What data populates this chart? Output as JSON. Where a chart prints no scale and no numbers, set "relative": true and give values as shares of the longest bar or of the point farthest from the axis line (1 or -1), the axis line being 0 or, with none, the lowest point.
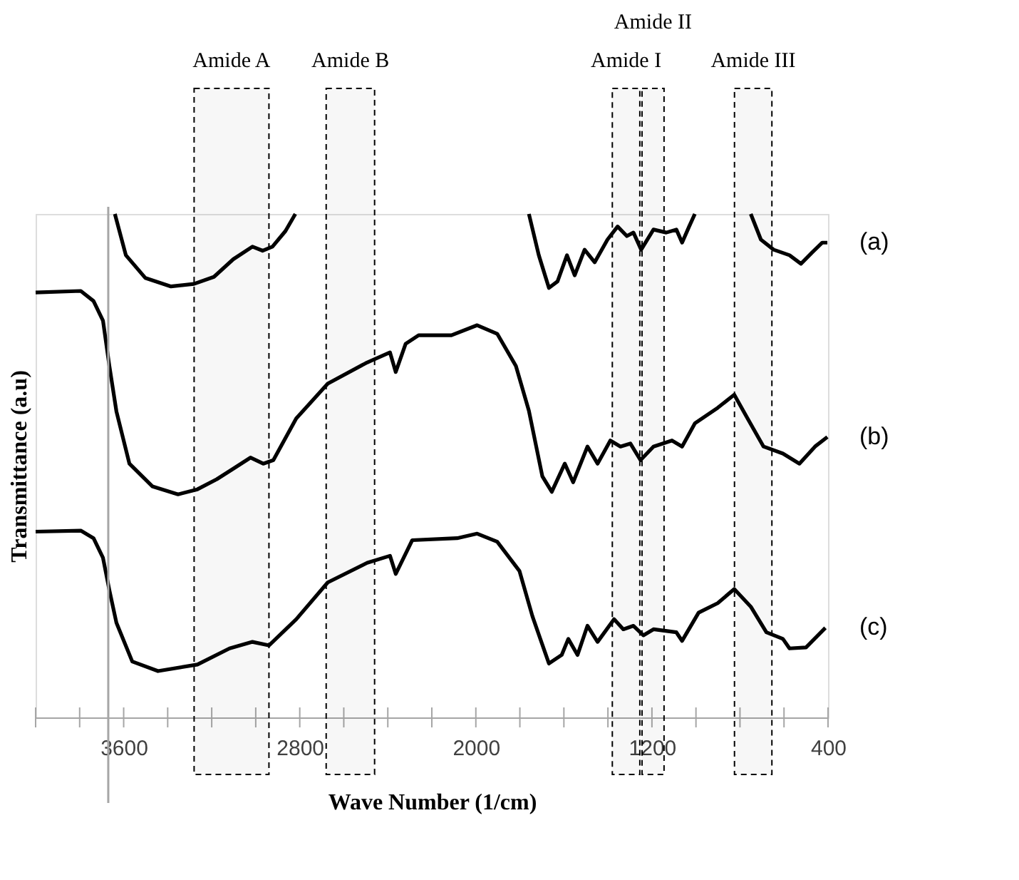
{
  "chart_data": {
    "type": "line",
    "relative": true,
    "xlabel": "Wave Number (1/cm)",
    "ylabel": "Transmittance (a.u)",
    "xlim": [
      4000,
      400
    ],
    "xticks": [
      {
        "value": 4000,
        "label": null
      },
      {
        "value": 3800,
        "label": null
      },
      3600,
      {
        "value": 3400,
        "label": null
      },
      {
        "value": 3200,
        "label": null
      },
      {
        "value": 3000,
        "label": null
      },
      2800,
      {
        "value": 2600,
        "label": null
      },
      {
        "value": 2400,
        "label": null
      },
      {
        "value": 2200,
        "label": null
      },
      2000,
      {
        "value": 1800,
        "label": null
      },
      {
        "value": 1600,
        "label": null
      },
      {
        "value": 1400,
        "label": null
      },
      1200,
      {
        "value": 1000,
        "label": null
      },
      {
        "value": 800,
        "label": null
      },
      {
        "value": 600,
        "label": null
      },
      400
    ],
    "grid": false,
    "line_style": "solid",
    "marker": "none",
    "series": [
      {
        "name": "(a)",
        "color": "#000000",
        "x": [
          3640,
          3590,
          3502,
          3385,
          3281,
          3190,
          3102,
          3015,
          2969,
          2924,
          2865,
          2820,
          2300,
          1759,
          1714,
          1668,
          1629,
          1586,
          1551,
          1506,
          1460,
          1402,
          1356,
          1314,
          1284,
          1249,
          1193,
          1135,
          1089,
          1063,
          1031,
          1005,
          900,
          751,
          705,
          647,
          575,
          523,
          471,
          426,
          403
        ],
        "values": [
          1.0,
          0.918,
          0.873,
          0.856,
          0.861,
          0.875,
          0.91,
          0.935,
          0.927,
          0.935,
          0.966,
          1.0,
          null,
          1.0,
          0.918,
          0.853,
          0.866,
          0.918,
          0.878,
          0.929,
          0.904,
          0.949,
          0.975,
          0.956,
          0.963,
          0.929,
          0.969,
          0.963,
          0.969,
          0.943,
          0.975,
          1.0,
          null,
          1.0,
          0.949,
          0.929,
          0.918,
          0.901,
          0.924,
          0.943,
          0.943
        ]
      },
      {
        "name": "(b)",
        "color": "#000000",
        "x": [
          4000,
          3795,
          3737,
          3694,
          3665,
          3633,
          3574,
          3470,
          3353,
          3265,
          3177,
          3102,
          3024,
          2966,
          2920,
          2816,
          2673,
          2494,
          2390,
          2364,
          2319,
          2260,
          2111,
          1994,
          1903,
          1818,
          1759,
          1698,
          1655,
          1596,
          1558,
          1493,
          1447,
          1389,
          1343,
          1298,
          1252,
          1193,
          1109,
          1063,
          1005,
          901,
          826,
          767,
          693,
          605,
          530,
          459,
          403
        ],
        "values": [
          0.844,
          0.847,
          0.827,
          0.788,
          0.698,
          0.608,
          0.504,
          0.459,
          0.443,
          0.453,
          0.473,
          0.494,
          0.516,
          0.504,
          0.511,
          0.594,
          0.663,
          0.705,
          0.725,
          0.686,
          0.742,
          0.759,
          0.759,
          0.779,
          0.762,
          0.698,
          0.609,
          0.479,
          0.448,
          0.504,
          0.467,
          0.538,
          0.504,
          0.55,
          0.538,
          0.544,
          0.511,
          0.538,
          0.55,
          0.538,
          0.584,
          0.615,
          0.641,
          0.595,
          0.538,
          0.524,
          0.504,
          0.538,
          0.557
        ]
      },
      {
        "name": "(c)",
        "color": "#000000",
        "x": [
          4000,
          3795,
          3737,
          3694,
          3665,
          3633,
          3561,
          3444,
          3265,
          3119,
          3015,
          2940,
          2816,
          2673,
          2494,
          2390,
          2364,
          2289,
          2085,
          1994,
          1903,
          1802,
          1743,
          1668,
          1610,
          1580,
          1538,
          1493,
          1447,
          1372,
          1330,
          1284,
          1239,
          1193,
          1089,
          1063,
          988,
          901,
          826,
          751,
          680,
          605,
          575,
          500,
          412
        ],
        "values": [
          0.369,
          0.371,
          0.356,
          0.317,
          0.253,
          0.188,
          0.111,
          0.092,
          0.105,
          0.137,
          0.15,
          0.143,
          0.195,
          0.268,
          0.307,
          0.321,
          0.285,
          0.352,
          0.356,
          0.365,
          0.349,
          0.291,
          0.201,
          0.107,
          0.124,
          0.156,
          0.124,
          0.182,
          0.15,
          0.195,
          0.175,
          0.182,
          0.163,
          0.175,
          0.169,
          0.152,
          0.208,
          0.227,
          0.255,
          0.22,
          0.169,
          0.156,
          0.137,
          0.139,
          0.178
        ]
      }
    ],
    "ref_lines": [
      {
        "axis": "x",
        "value": 3670,
        "label": null,
        "color": "#a6a6a6",
        "line_style": "solid"
      }
    ],
    "bands": [
      {
        "axis": "x",
        "from": 3280,
        "to": 2940,
        "label": "Amide A",
        "color": "#000000"
      },
      {
        "axis": "x",
        "from": 2680,
        "to": 2460,
        "label": "Amide B",
        "color": "#000000"
      },
      {
        "axis": "x",
        "from": 1380,
        "to": 1255,
        "label": "Amide I",
        "color": "#000000"
      },
      {
        "axis": "x",
        "from": 1245,
        "to": 1145,
        "label": "Amide II",
        "color": "#000000"
      },
      {
        "axis": "x",
        "from": 825,
        "to": 655,
        "label": "Amide III",
        "color": "#000000"
      }
    ]
  }
}
